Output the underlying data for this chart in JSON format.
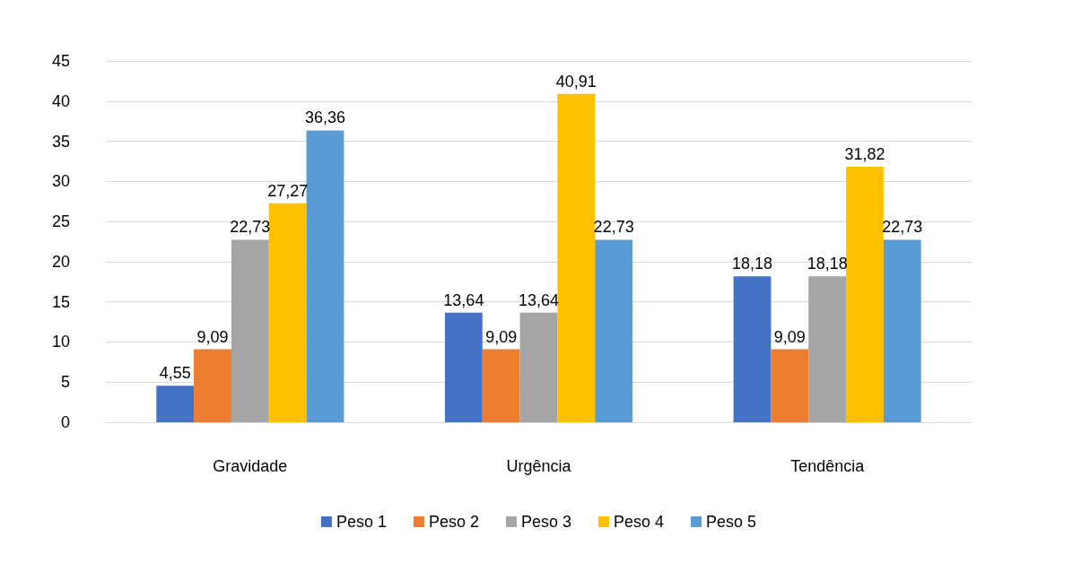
{
  "chart_data": {
    "type": "bar",
    "categories": [
      "Gravidade",
      "Urgência",
      "Tendência"
    ],
    "series": [
      {
        "name": "Peso 1",
        "color": "#4472c4",
        "values": [
          4.55,
          13.64,
          18.18
        ],
        "value_labels": [
          "4,55",
          "13,64",
          "18,18"
        ]
      },
      {
        "name": "Peso 2",
        "color": "#ed7d31",
        "values": [
          9.09,
          9.09,
          9.09
        ],
        "value_labels": [
          "9,09",
          "9,09",
          "9,09"
        ]
      },
      {
        "name": "Peso 3",
        "color": "#a5a5a5",
        "values": [
          22.73,
          13.64,
          18.18
        ],
        "value_labels": [
          "22,73",
          "13,64",
          "18,18"
        ]
      },
      {
        "name": "Peso 4",
        "color": "#ffc000",
        "values": [
          27.27,
          40.91,
          31.82
        ],
        "value_labels": [
          "27,27",
          "40,91",
          "31,82"
        ]
      },
      {
        "name": "Peso 5",
        "color": "#5b9bd5",
        "values": [
          36.36,
          22.73,
          22.73
        ],
        "value_labels": [
          "36,36",
          "22,73",
          "22,73"
        ]
      }
    ],
    "ylim": [
      0,
      45
    ],
    "yticks": [
      0,
      5,
      10,
      15,
      20,
      25,
      30,
      35,
      40,
      45
    ],
    "grid": "y",
    "legend": "bottom"
  }
}
